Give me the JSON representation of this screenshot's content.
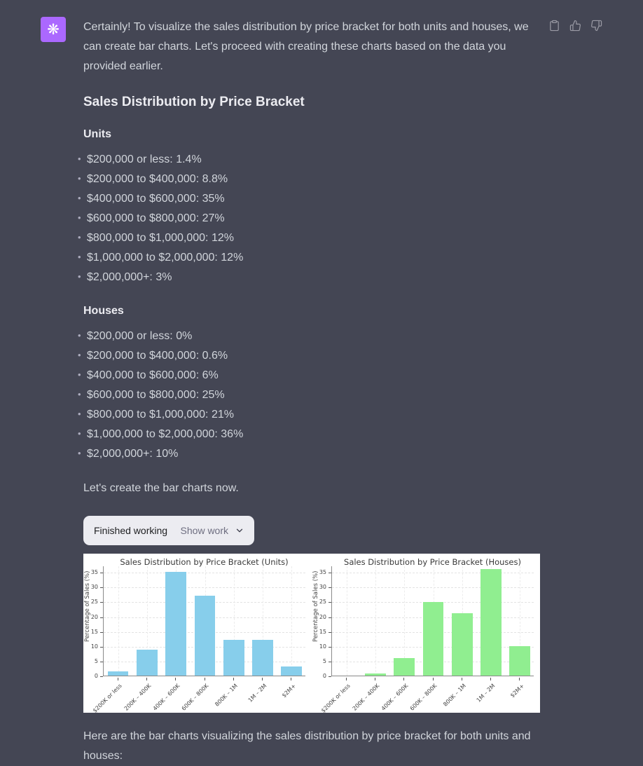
{
  "colors": {
    "page_background": "#444654",
    "body_text": "#d1d5db",
    "heading_text": "#ececf1",
    "avatar_background": "#ab68ff",
    "action_icon": "#9b9ba5",
    "widget_background": "#ececf1",
    "widget_status_text": "#202123",
    "widget_action_text": "#6e6e80",
    "chart_background": "#ffffff",
    "units_bar_color": "#87ceeb",
    "houses_bar_color": "#90ee90"
  },
  "avatar": {
    "icon": "openai-logo-icon",
    "glyph": "❋"
  },
  "actions": {
    "copy": "copy-icon",
    "thumbs_up": "thumbs-up-icon",
    "thumbs_down": "thumbs-down-icon"
  },
  "message": {
    "intro": "Certainly! To visualize the sales distribution by price bracket for both units and houses, we can create bar charts. Let's proceed with creating these charts based on the data you provided earlier.",
    "heading": "Sales Distribution by Price Bracket",
    "sections": [
      {
        "title": "Units",
        "items": [
          "$200,000 or less: 1.4%",
          "$200,000 to $400,000: 8.8%",
          "$400,000 to $600,000: 35%",
          "$600,000 to $800,000: 27%",
          "$800,000 to $1,000,000: 12%",
          "$1,000,000 to $2,000,000: 12%",
          "$2,000,000+: 3%"
        ]
      },
      {
        "title": "Houses",
        "items": [
          "$200,000 or less: 0%",
          "$200,000 to $400,000: 0.6%",
          "$400,000 to $600,000: 6%",
          "$600,000 to $800,000: 25%",
          "$800,000 to $1,000,000: 21%",
          "$1,000,000 to $2,000,000: 36%",
          "$2,000,000+: 10%"
        ]
      }
    ],
    "pre_chart_text": "Let's create the bar charts now.",
    "outro": "Here are the bar charts visualizing the sales distribution by price bracket for both units and houses:"
  },
  "work_widget": {
    "status": "Finished working",
    "action": "Show work"
  },
  "chart_data": [
    {
      "type": "bar",
      "title": "Sales Distribution by Price Bracket (Units)",
      "xlabel": "",
      "ylabel": "Percentage of Sales (%)",
      "categories": [
        "$200K or less",
        "200K – 400K",
        "400K – 600K",
        "600K – 800K",
        "800K – 1M",
        "1M – 2M",
        "$2M+"
      ],
      "values": [
        1.4,
        8.8,
        35,
        27,
        12,
        12,
        3
      ],
      "bar_color": "#87ceeb",
      "ylim": [
        0,
        37.2
      ],
      "yticks": [
        0,
        5,
        10,
        15,
        20,
        25,
        30,
        35
      ],
      "grid": true,
      "legend": false
    },
    {
      "type": "bar",
      "title": "Sales Distribution by Price Bracket (Houses)",
      "xlabel": "",
      "ylabel": "Percentage of Sales (%)",
      "categories": [
        "$200K or less",
        "200K – 400K",
        "400K – 600K",
        "600K – 800K",
        "800K – 1M",
        "1M – 2M",
        "$2M+"
      ],
      "values": [
        0,
        0.6,
        6,
        25,
        21,
        36,
        10
      ],
      "bar_color": "#90ee90",
      "ylim": [
        0,
        37.2
      ],
      "yticks": [
        0,
        5,
        10,
        15,
        20,
        25,
        30,
        35
      ],
      "grid": true,
      "legend": false
    }
  ]
}
